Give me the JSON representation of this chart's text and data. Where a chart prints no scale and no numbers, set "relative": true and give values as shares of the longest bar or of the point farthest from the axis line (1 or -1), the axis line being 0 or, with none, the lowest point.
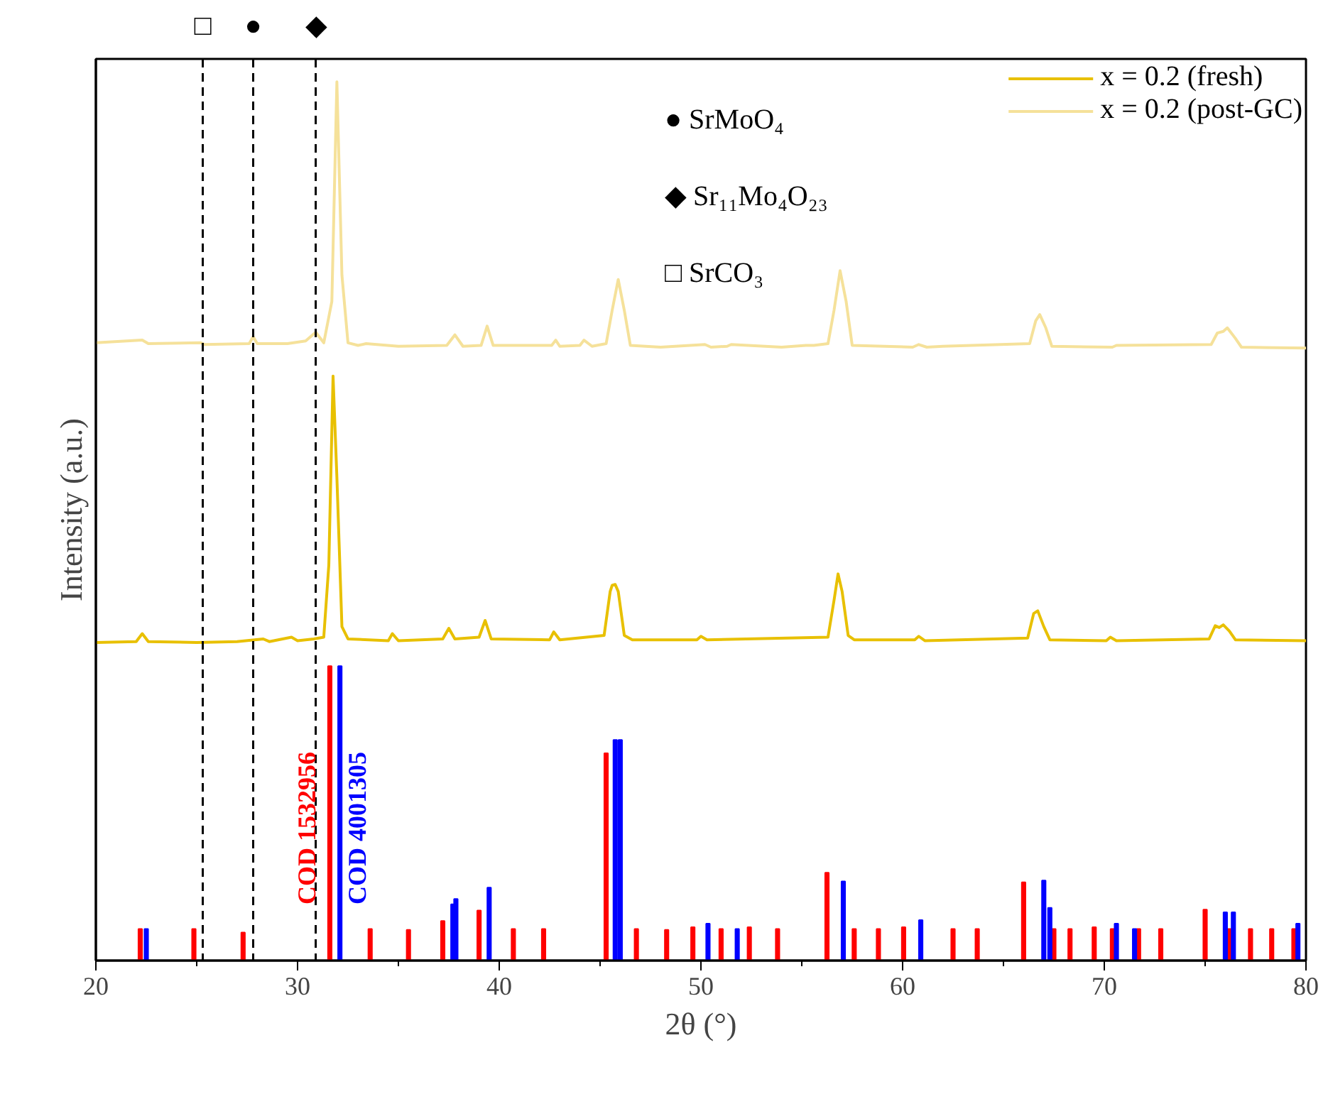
{
  "chart_data": {
    "type": "line",
    "xlabel": "2θ (°)",
    "ylabel": "Intensity (a.u.)",
    "relative": true,
    "xlim": [
      20,
      80
    ],
    "xticks": [
      20,
      30,
      40,
      50,
      60,
      70,
      80
    ],
    "legend": "top right",
    "line_style": "solid",
    "marker": "none",
    "ref_lines": [
      {
        "axis": "x",
        "value": 25.3,
        "label": "□",
        "line_style": "dashed",
        "color": "#000000"
      },
      {
        "axis": "x",
        "value": 27.8,
        "label": "●",
        "line_style": "dashed",
        "color": "#000000"
      },
      {
        "axis": "x",
        "value": 30.9,
        "label": "◆",
        "line_style": "dashed",
        "color": "#000000"
      }
    ],
    "annotations": [
      "● SrMoO₄",
      "◆ Sr₁₁Mo₄O₂₃",
      "□ SrCO₃"
    ],
    "series": [
      {
        "name": "x = 0.2 (fresh)",
        "color": "#e8c000",
        "x": [
          20,
          22,
          22.3,
          22.6,
          25,
          27,
          28.3,
          28.6,
          29.7,
          30,
          30.8,
          31.3,
          31.55,
          31.76,
          31.95,
          32.2,
          32.5,
          34.5,
          34.7,
          35,
          37.2,
          37.5,
          37.8,
          39,
          39.3,
          39.6,
          42.5,
          42.7,
          43,
          45.2,
          45.5,
          45.6,
          45.75,
          45.9,
          46.2,
          46.6,
          49.8,
          50,
          50.3,
          56.3,
          56.6,
          56.8,
          57.0,
          57.3,
          57.6,
          60.6,
          60.8,
          61.1,
          66.2,
          66.5,
          66.7,
          67.0,
          67.3,
          70.1,
          70.3,
          70.6,
          75.2,
          75.5,
          75.7,
          75.9,
          76.2,
          76.5,
          80
        ],
        "values": [
          0.362,
          0.363,
          0.372,
          0.363,
          0.362,
          0.363,
          0.366,
          0.363,
          0.368,
          0.364,
          0.366,
          0.368,
          0.45,
          0.665,
          0.55,
          0.38,
          0.366,
          0.364,
          0.372,
          0.364,
          0.366,
          0.378,
          0.366,
          0.368,
          0.387,
          0.366,
          0.365,
          0.374,
          0.365,
          0.37,
          0.42,
          0.427,
          0.428,
          0.42,
          0.37,
          0.365,
          0.365,
          0.369,
          0.365,
          0.368,
          0.41,
          0.44,
          0.42,
          0.37,
          0.365,
          0.365,
          0.369,
          0.364,
          0.367,
          0.395,
          0.398,
          0.38,
          0.365,
          0.364,
          0.368,
          0.364,
          0.366,
          0.381,
          0.379,
          0.382,
          0.375,
          0.365,
          0.364
        ]
      },
      {
        "name": "x = 0.2 (post-GC)",
        "color": "#f5e19a",
        "x": [
          20,
          22.3,
          22.6,
          25.2,
          25.4,
          27.6,
          27.8,
          28,
          29.5,
          30.4,
          30.9,
          31.3,
          31.7,
          31.95,
          32.2,
          32.5,
          33.0,
          33.4,
          35,
          37.4,
          37.8,
          38.2,
          39.1,
          39.4,
          39.7,
          42.6,
          42.8,
          43.0,
          44.0,
          44.2,
          44.6,
          45.3,
          45.6,
          45.9,
          46.2,
          46.5,
          48,
          50.2,
          50.5,
          51.3,
          51.5,
          54,
          55.2,
          55.6,
          56.3,
          56.6,
          56.9,
          57.2,
          57.5,
          60.5,
          60.8,
          61.2,
          62,
          66.3,
          66.6,
          66.8,
          67.1,
          67.4,
          70.4,
          70.6,
          75.3,
          75.6,
          75.9,
          76.1,
          76.5,
          76.8,
          80
        ],
        "values": [
          0.703,
          0.706,
          0.702,
          0.703,
          0.701,
          0.702,
          0.71,
          0.702,
          0.702,
          0.705,
          0.715,
          0.703,
          0.75,
          1.0,
          0.78,
          0.703,
          0.7,
          0.702,
          0.699,
          0.7,
          0.712,
          0.699,
          0.7,
          0.722,
          0.7,
          0.7,
          0.706,
          0.699,
          0.7,
          0.706,
          0.699,
          0.702,
          0.74,
          0.775,
          0.74,
          0.7,
          0.698,
          0.701,
          0.698,
          0.699,
          0.701,
          0.698,
          0.7,
          0.7,
          0.702,
          0.74,
          0.785,
          0.75,
          0.7,
          0.698,
          0.701,
          0.698,
          0.699,
          0.702,
          0.728,
          0.735,
          0.72,
          0.699,
          0.698,
          0.7,
          0.701,
          0.714,
          0.716,
          0.72,
          0.708,
          0.698,
          0.697
        ]
      },
      {
        "name": "COD 1532956",
        "type": "bar",
        "color": "#ff0000",
        "x": [
          22.2,
          24.86,
          27.3,
          31.6,
          33.6,
          35.5,
          37.2,
          39.0,
          40.7,
          42.2,
          45.3,
          46.8,
          48.3,
          49.6,
          51.0,
          52.4,
          53.8,
          56.25,
          57.6,
          58.8,
          60.05,
          62.5,
          63.7,
          66.0,
          67.5,
          68.3,
          69.5,
          70.4,
          71.7,
          72.8,
          75.0,
          76.2,
          77.25,
          78.3,
          79.4
        ],
        "values": [
          0.036,
          0.036,
          0.032,
          0.335,
          0.036,
          0.035,
          0.045,
          0.057,
          0.036,
          0.036,
          0.236,
          0.036,
          0.035,
          0.038,
          0.036,
          0.038,
          0.036,
          0.1,
          0.036,
          0.036,
          0.038,
          0.036,
          0.036,
          0.089,
          0.036,
          0.036,
          0.038,
          0.036,
          0.036,
          0.036,
          0.058,
          0.036,
          0.036,
          0.036,
          0.036
        ]
      },
      {
        "name": "COD 4001305",
        "type": "bar",
        "color": "#0000ff",
        "x": [
          22.5,
          32.1,
          37.7,
          37.85,
          39.5,
          45.75,
          46.0,
          50.35,
          51.8,
          57.06,
          60.9,
          67.0,
          67.3,
          70.6,
          71.5,
          76.0,
          76.4,
          79.6
        ],
        "values": [
          0.036,
          0.335,
          0.064,
          0.07,
          0.083,
          0.251,
          0.251,
          0.042,
          0.036,
          0.09,
          0.046,
          0.091,
          0.06,
          0.042,
          0.036,
          0.055,
          0.055,
          0.042
        ]
      }
    ]
  }
}
